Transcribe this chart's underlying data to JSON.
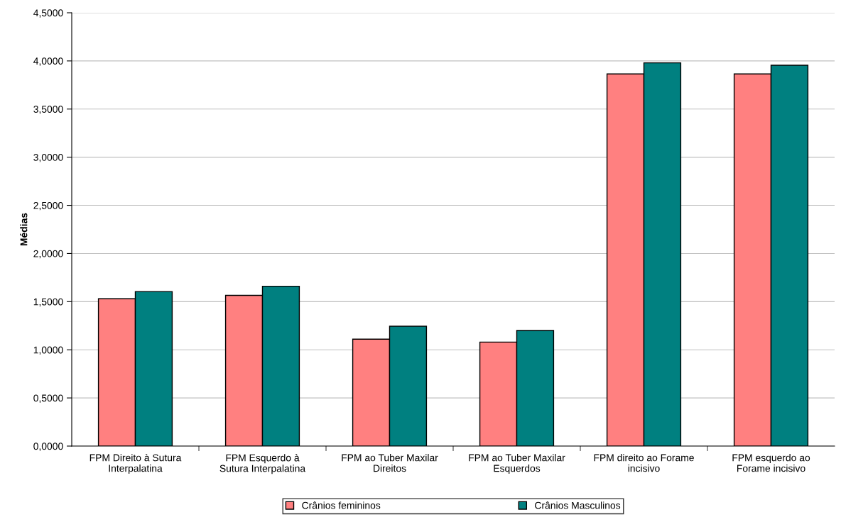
{
  "chart_data": {
    "type": "bar",
    "ylabel": "Médias",
    "categories": [
      "FPM Direito à Sutura\nInterpalatina",
      "FPM Esquerdo à\nSutura Interpalatina",
      "FPM ao Tuber Maxilar\nDireitos",
      "FPM ao Tuber Maxilar\nEsquerdos",
      "FPM direito ao Forame\nincisivo",
      "FPM esquerdo ao\nForame incisivo"
    ],
    "series": [
      {
        "name": "Crânios femininos",
        "color": "#ff8080",
        "values": [
          1.53,
          1.565,
          1.11,
          1.08,
          3.865,
          3.865
        ]
      },
      {
        "name": "Crânios Masculinos",
        "color": "#008080",
        "values": [
          1.605,
          1.66,
          1.245,
          1.2,
          3.98,
          3.955
        ]
      }
    ],
    "ylim": [
      0,
      4.5
    ],
    "yticks": [
      {
        "value": 0,
        "label": "0,0000"
      },
      {
        "value": 0.5,
        "label": "0,5000"
      },
      {
        "value": 1,
        "label": "1,0000"
      },
      {
        "value": 1.5,
        "label": "1,5000"
      },
      {
        "value": 2,
        "label": "2,0000"
      },
      {
        "value": 2.5,
        "label": "2,5000"
      },
      {
        "value": 3,
        "label": "3,0000"
      },
      {
        "value": 3.5,
        "label": "3,5000"
      },
      {
        "value": 4,
        "label": "4,0000"
      },
      {
        "value": 4.5,
        "label": "4,5000"
      }
    ],
    "grid": "y",
    "legend": "bottom"
  }
}
